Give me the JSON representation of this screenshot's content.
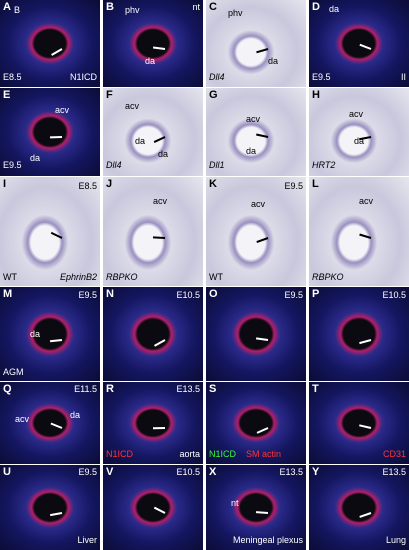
{
  "panels": [
    {
      "letter": "A",
      "labels": [
        "B",
        "E8.5",
        "N1ICD"
      ]
    },
    {
      "letter": "B",
      "labels": [
        "phv",
        "nt",
        "da"
      ]
    },
    {
      "letter": "C",
      "labels": [
        "phv",
        "da",
        "Dll4"
      ]
    },
    {
      "letter": "D",
      "labels": [
        "da",
        "E9.5",
        "II"
      ]
    },
    {
      "letter": "E",
      "labels": [
        "acv",
        "da",
        "E9.5"
      ]
    },
    {
      "letter": "F",
      "labels": [
        "acv",
        "da",
        "da",
        "Dll4"
      ]
    },
    {
      "letter": "G",
      "labels": [
        "acv",
        "da",
        "Dll1"
      ]
    },
    {
      "letter": "H",
      "labels": [
        "acv",
        "da",
        "HRT2"
      ]
    },
    {
      "letter": "I",
      "labels": [
        "E8.5",
        "WT",
        "EphrinB2"
      ]
    },
    {
      "letter": "J",
      "labels": [
        "acv",
        "RBPKO"
      ]
    },
    {
      "letter": "K",
      "labels": [
        "E9.5",
        "acv",
        "WT"
      ]
    },
    {
      "letter": "L",
      "labels": [
        "acv",
        "RBPKO"
      ]
    },
    {
      "letter": "M",
      "labels": [
        "E9.5",
        "da",
        "AGM"
      ]
    },
    {
      "letter": "N",
      "labels": [
        "E10.5"
      ]
    },
    {
      "letter": "O",
      "labels": [
        "E9.5"
      ]
    },
    {
      "letter": "P",
      "labels": [
        "E10.5"
      ]
    },
    {
      "letter": "Q",
      "labels": [
        "E11.5",
        "acv",
        "da"
      ]
    },
    {
      "letter": "R",
      "labels": [
        "E13.5",
        "N1ICD",
        "aorta"
      ]
    },
    {
      "letter": "S",
      "labels": [
        "N1ICD",
        "SM actin"
      ]
    },
    {
      "letter": "T",
      "labels": [
        "CD31"
      ]
    },
    {
      "letter": "U",
      "labels": [
        "E9.5",
        "Liver"
      ]
    },
    {
      "letter": "V",
      "labels": [
        "E10.5"
      ]
    },
    {
      "letter": "X",
      "labels": [
        "E13.5",
        "nt",
        "Meningeal plexus"
      ]
    },
    {
      "letter": "Y",
      "labels": [
        "E13.5",
        "Lung"
      ]
    }
  ]
}
